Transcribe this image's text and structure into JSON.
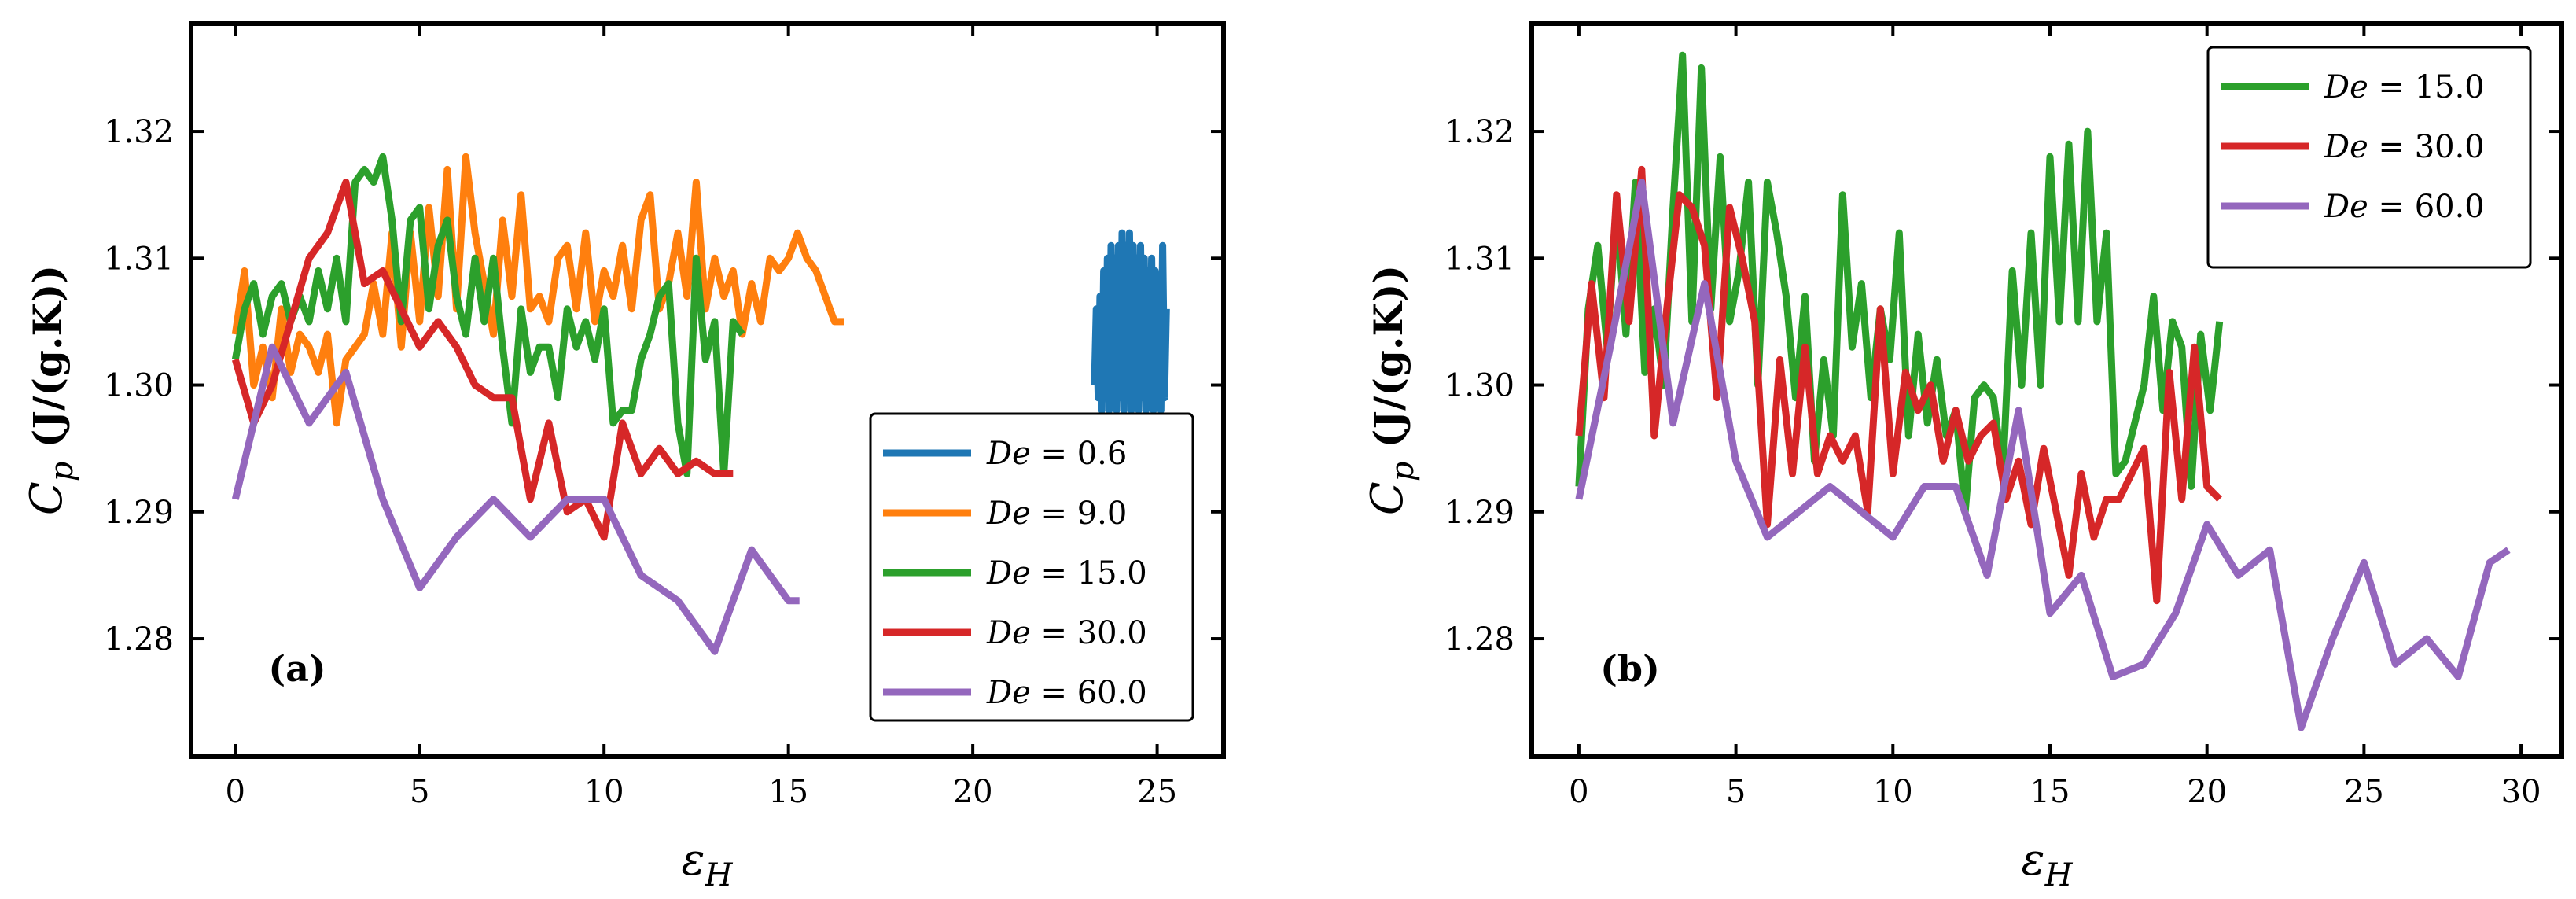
{
  "chart_data": [
    {
      "type": "line",
      "panel_label": "(a)",
      "xlabel_main": "ε",
      "xlabel_sub": "H",
      "ylabel_main": "C",
      "ylabel_sub": "p",
      "ylabel_rest": " (J/(g.K))",
      "xlim": [
        -1.2,
        26.8
      ],
      "ylim": [
        1.2707,
        1.3285
      ],
      "xticks": [
        0,
        5,
        10,
        15,
        20,
        25
      ],
      "yticks": [
        1.28,
        1.29,
        1.3,
        1.31,
        1.32
      ],
      "ytick_labels": [
        "1.28",
        "1.29",
        "1.30",
        "1.31",
        "1.32"
      ],
      "legend_position": "lower-right",
      "series": [
        {
          "name": "De = 0.6",
          "legend_var": "De",
          "legend_value": " = 0.6",
          "color": "#1f77b4",
          "x": [
            23.3,
            23.35,
            23.4,
            23.45,
            23.5,
            23.55,
            23.6,
            23.65,
            23.7,
            23.75,
            23.8,
            23.85,
            23.9,
            23.95,
            24.0,
            24.05,
            24.1,
            24.15,
            24.2,
            24.25,
            24.3,
            24.35,
            24.4,
            24.45,
            24.5,
            24.55,
            24.6,
            24.65,
            24.7,
            24.75,
            24.8,
            24.85,
            24.9,
            24.95,
            25.0,
            25.05,
            25.1,
            25.15,
            25.2,
            25.25
          ],
          "y": [
            1.3,
            1.306,
            1.299,
            1.307,
            1.298,
            1.309,
            1.299,
            1.31,
            1.298,
            1.311,
            1.299,
            1.31,
            1.298,
            1.311,
            1.299,
            1.312,
            1.298,
            1.311,
            1.299,
            1.312,
            1.298,
            1.311,
            1.299,
            1.31,
            1.298,
            1.311,
            1.299,
            1.31,
            1.298,
            1.309,
            1.299,
            1.31,
            1.298,
            1.309,
            1.299,
            1.308,
            1.298,
            1.311,
            1.299,
            1.306
          ]
        },
        {
          "name": "De = 9.0",
          "legend_var": "De",
          "legend_value": " = 9.0",
          "color": "#ff7f0e",
          "x": [
            0,
            0.25,
            0.5,
            0.75,
            1.0,
            1.25,
            1.5,
            1.75,
            2.0,
            2.25,
            2.5,
            2.75,
            3.0,
            3.25,
            3.5,
            3.75,
            4.0,
            4.25,
            4.5,
            4.75,
            5.0,
            5.25,
            5.5,
            5.75,
            6.0,
            6.25,
            6.5,
            6.75,
            7.0,
            7.25,
            7.5,
            7.75,
            8.0,
            8.25,
            8.5,
            8.75,
            9.0,
            9.25,
            9.5,
            9.75,
            10.0,
            10.25,
            10.5,
            10.75,
            11.0,
            11.25,
            11.5,
            11.75,
            12.0,
            12.25,
            12.5,
            12.75,
            13.0,
            13.25,
            13.5,
            13.75,
            14.0,
            14.25,
            14.5,
            14.75,
            15.0,
            15.25,
            15.5,
            15.75,
            16.0,
            16.25,
            16.5
          ],
          "y": [
            1.304,
            1.309,
            1.3,
            1.303,
            1.299,
            1.306,
            1.301,
            1.304,
            1.303,
            1.301,
            1.304,
            1.297,
            1.302,
            1.303,
            1.304,
            1.308,
            1.304,
            1.312,
            1.303,
            1.312,
            1.305,
            1.314,
            1.307,
            1.317,
            1.306,
            1.318,
            1.312,
            1.308,
            1.304,
            1.313,
            1.307,
            1.315,
            1.306,
            1.307,
            1.305,
            1.31,
            1.311,
            1.306,
            1.312,
            1.305,
            1.309,
            1.307,
            1.311,
            1.306,
            1.313,
            1.315,
            1.306,
            1.308,
            1.312,
            1.307,
            1.316,
            1.306,
            1.31,
            1.307,
            1.309,
            1.304,
            1.308,
            1.305,
            1.31,
            1.309,
            1.31,
            1.312,
            1.31,
            1.309,
            1.307,
            1.305,
            1.305
          ]
        },
        {
          "name": "De = 15.0",
          "legend_var": "De",
          "legend_value": " = 15.0",
          "color": "#2ca02c",
          "x": [
            0,
            0.25,
            0.5,
            0.75,
            1.0,
            1.25,
            1.5,
            1.75,
            2.0,
            2.25,
            2.5,
            2.75,
            3.0,
            3.25,
            3.5,
            3.75,
            4.0,
            4.25,
            4.5,
            4.75,
            5.0,
            5.25,
            5.5,
            5.75,
            6.0,
            6.25,
            6.5,
            6.75,
            7.0,
            7.25,
            7.5,
            7.75,
            8.0,
            8.25,
            8.5,
            8.75,
            9.0,
            9.25,
            9.5,
            9.75,
            10.0,
            10.25,
            10.5,
            10.75,
            11.0,
            11.25,
            11.5,
            11.75,
            12.0,
            12.25,
            12.5,
            12.75,
            13.0,
            13.25,
            13.5,
            13.75
          ],
          "y": [
            1.302,
            1.306,
            1.308,
            1.304,
            1.307,
            1.308,
            1.305,
            1.307,
            1.305,
            1.309,
            1.306,
            1.31,
            1.305,
            1.316,
            1.317,
            1.316,
            1.318,
            1.313,
            1.305,
            1.313,
            1.314,
            1.306,
            1.311,
            1.313,
            1.307,
            1.304,
            1.31,
            1.305,
            1.31,
            1.303,
            1.297,
            1.306,
            1.301,
            1.303,
            1.303,
            1.299,
            1.306,
            1.303,
            1.305,
            1.302,
            1.306,
            1.297,
            1.298,
            1.298,
            1.302,
            1.304,
            1.307,
            1.308,
            1.297,
            1.293,
            1.31,
            1.302,
            1.305,
            1.293,
            1.305,
            1.304
          ]
        },
        {
          "name": "De = 30.0",
          "legend_var": "De",
          "legend_value": " = 30.0",
          "color": "#d62728",
          "x": [
            0,
            0.5,
            1.0,
            1.5,
            2.0,
            2.5,
            3.0,
            3.5,
            4.0,
            4.5,
            5.0,
            5.5,
            6.0,
            6.5,
            7.0,
            7.5,
            8.0,
            8.5,
            9.0,
            9.5,
            10.0,
            10.5,
            11.0,
            11.5,
            12.0,
            12.5,
            13.0,
            13.5
          ],
          "y": [
            1.302,
            1.297,
            1.3,
            1.305,
            1.31,
            1.312,
            1.316,
            1.308,
            1.309,
            1.306,
            1.303,
            1.305,
            1.303,
            1.3,
            1.299,
            1.299,
            1.291,
            1.297,
            1.29,
            1.291,
            1.288,
            1.297,
            1.293,
            1.295,
            1.293,
            1.294,
            1.293,
            1.293
          ]
        },
        {
          "name": "De = 60.0",
          "legend_var": "De",
          "legend_value": " = 60.0",
          "color": "#9467bd",
          "x": [
            0,
            1.0,
            2.0,
            3.0,
            4.0,
            5.0,
            6.0,
            7.0,
            8.0,
            9.0,
            10.0,
            11.0,
            12.0,
            13.0,
            14.0,
            15.0,
            15.3
          ],
          "y": [
            1.291,
            1.303,
            1.297,
            1.301,
            1.291,
            1.284,
            1.288,
            1.291,
            1.288,
            1.291,
            1.291,
            1.285,
            1.283,
            1.279,
            1.287,
            1.283,
            1.283
          ]
        }
      ]
    },
    {
      "type": "line",
      "panel_label": "(b)",
      "xlabel_main": "ε",
      "xlabel_sub": "H",
      "ylabel_main": "C",
      "ylabel_sub": "p",
      "ylabel_rest": " (J/(g.K))",
      "xlim": [
        -1.5,
        31.3
      ],
      "ylim": [
        1.2707,
        1.3285
      ],
      "xticks": [
        0,
        5,
        10,
        15,
        20,
        25,
        30
      ],
      "yticks": [
        1.28,
        1.29,
        1.3,
        1.31,
        1.32
      ],
      "ytick_labels": [
        "1.28",
        "1.29",
        "1.30",
        "1.31",
        "1.32"
      ],
      "legend_position": "upper-right",
      "series": [
        {
          "name": "De = 15.0",
          "legend_var": "De",
          "legend_value": " = 15.0",
          "color": "#2ca02c",
          "x": [
            0,
            0.3,
            0.6,
            0.9,
            1.2,
            1.5,
            1.8,
            2.1,
            2.4,
            2.7,
            3.0,
            3.3,
            3.6,
            3.9,
            4.2,
            4.5,
            4.8,
            5.1,
            5.4,
            5.7,
            6.0,
            6.3,
            6.6,
            6.9,
            7.2,
            7.5,
            7.8,
            8.1,
            8.4,
            8.7,
            9.0,
            9.3,
            9.6,
            9.9,
            10.2,
            10.5,
            10.8,
            11.1,
            11.4,
            11.7,
            12.0,
            12.3,
            12.6,
            12.9,
            13.2,
            13.5,
            13.8,
            14.1,
            14.4,
            14.7,
            15.0,
            15.3,
            15.6,
            15.9,
            16.2,
            16.5,
            16.8,
            17.1,
            17.4,
            17.7,
            18.0,
            18.3,
            18.6,
            18.9,
            19.2,
            19.5,
            19.8,
            20.1,
            20.4
          ],
          "y": [
            1.292,
            1.306,
            1.311,
            1.303,
            1.314,
            1.304,
            1.316,
            1.301,
            1.306,
            1.3,
            1.314,
            1.326,
            1.305,
            1.325,
            1.306,
            1.318,
            1.305,
            1.309,
            1.316,
            1.3,
            1.316,
            1.312,
            1.307,
            1.299,
            1.307,
            1.294,
            1.302,
            1.296,
            1.315,
            1.303,
            1.308,
            1.299,
            1.306,
            1.302,
            1.312,
            1.296,
            1.304,
            1.297,
            1.302,
            1.296,
            1.298,
            1.29,
            1.299,
            1.3,
            1.299,
            1.293,
            1.309,
            1.3,
            1.312,
            1.3,
            1.318,
            1.305,
            1.319,
            1.305,
            1.32,
            1.305,
            1.312,
            1.293,
            1.294,
            1.297,
            1.3,
            1.307,
            1.298,
            1.305,
            1.303,
            1.292,
            1.304,
            1.298,
            1.305
          ]
        },
        {
          "name": "De = 30.0",
          "legend_var": "De",
          "legend_value": " = 30.0",
          "color": "#d62728",
          "x": [
            0,
            0.4,
            0.8,
            1.2,
            1.6,
            2.0,
            2.4,
            2.8,
            3.2,
            3.6,
            4.0,
            4.4,
            4.8,
            5.2,
            5.6,
            6.0,
            6.4,
            6.8,
            7.2,
            7.6,
            8.0,
            8.4,
            8.8,
            9.2,
            9.6,
            10.0,
            10.4,
            10.8,
            11.2,
            11.6,
            12.0,
            12.4,
            12.8,
            13.2,
            13.6,
            14.0,
            14.4,
            14.8,
            15.2,
            15.6,
            16.0,
            16.4,
            16.8,
            17.2,
            17.6,
            18.0,
            18.4,
            18.8,
            19.2,
            19.6,
            20.0,
            20.4
          ],
          "y": [
            1.296,
            1.308,
            1.299,
            1.315,
            1.305,
            1.317,
            1.296,
            1.306,
            1.315,
            1.314,
            1.311,
            1.299,
            1.314,
            1.31,
            1.305,
            1.289,
            1.302,
            1.293,
            1.303,
            1.293,
            1.296,
            1.294,
            1.296,
            1.29,
            1.306,
            1.293,
            1.301,
            1.298,
            1.3,
            1.294,
            1.298,
            1.294,
            1.296,
            1.297,
            1.291,
            1.294,
            1.289,
            1.295,
            1.29,
            1.285,
            1.293,
            1.288,
            1.291,
            1.291,
            1.293,
            1.295,
            1.283,
            1.301,
            1.291,
            1.303,
            1.292,
            1.291
          ]
        },
        {
          "name": "De = 60.0",
          "legend_var": "De",
          "legend_value": " = 60.0",
          "color": "#9467bd",
          "x": [
            0,
            1.0,
            2.0,
            3.0,
            4.0,
            5.0,
            6.0,
            7.0,
            8.0,
            9.0,
            10.0,
            11.0,
            12.0,
            13.0,
            14.0,
            15.0,
            16.0,
            17.0,
            18.0,
            19.0,
            20.0,
            21.0,
            22.0,
            23.0,
            24.0,
            25.0,
            26.0,
            27.0,
            28.0,
            29.0,
            29.6
          ],
          "y": [
            1.291,
            1.303,
            1.316,
            1.297,
            1.308,
            1.294,
            1.288,
            1.29,
            1.292,
            1.29,
            1.288,
            1.292,
            1.292,
            1.285,
            1.298,
            1.282,
            1.285,
            1.277,
            1.278,
            1.282,
            1.289,
            1.285,
            1.287,
            1.273,
            1.28,
            1.286,
            1.278,
            1.28,
            1.277,
            1.286,
            1.287
          ]
        }
      ]
    }
  ]
}
